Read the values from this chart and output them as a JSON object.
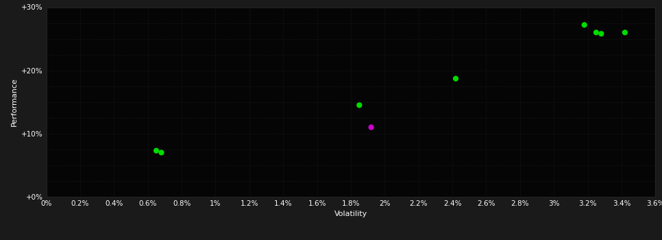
{
  "background_color": "#1a1a1a",
  "grid_color": "#2a2a2a",
  "plot_area_color": "#050505",
  "text_color": "#ffffff",
  "xlabel": "Volatility",
  "ylabel": "Performance",
  "xlim": [
    0.0,
    0.036
  ],
  "ylim": [
    0.0,
    0.3
  ],
  "xtick_major": [
    0.0,
    0.002,
    0.004,
    0.006,
    0.008,
    0.01,
    0.012,
    0.014,
    0.016,
    0.018,
    0.02,
    0.022,
    0.024,
    0.026,
    0.028,
    0.03,
    0.032,
    0.034,
    0.036
  ],
  "ytick_major": [
    0.0,
    0.1,
    0.2,
    0.3
  ],
  "green_points": [
    [
      0.0065,
      0.073
    ],
    [
      0.0068,
      0.07
    ],
    [
      0.0185,
      0.145
    ],
    [
      0.0242,
      0.187
    ],
    [
      0.0318,
      0.272
    ],
    [
      0.0325,
      0.26
    ],
    [
      0.0328,
      0.258
    ],
    [
      0.0342,
      0.26
    ]
  ],
  "magenta_points": [
    [
      0.0192,
      0.11
    ]
  ],
  "marker_size": 35,
  "font_size_label": 8,
  "font_size_tick": 7.5
}
